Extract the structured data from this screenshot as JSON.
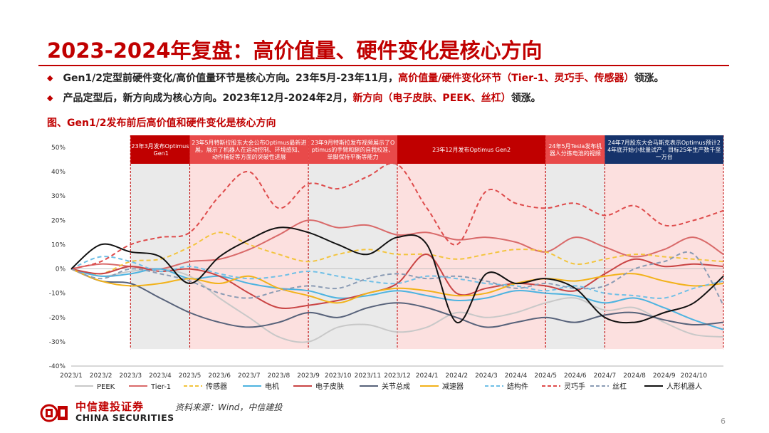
{
  "slide": {
    "title": "2023-2024年复盘：高价值量、硬件变化是核心方向",
    "bullets": [
      {
        "plain": "Gen1/2定型前硬件变化/高价值量环节是核心方向。23年5月-23年11月，",
        "highlight": "高价值量/硬件变化环节（Tier-1、灵巧手、传感器）",
        "tail": "领涨。"
      },
      {
        "plain": "产品定型后，新方向成为核心方向。2023年12月-2024年2月，",
        "highlight": "新方向（电子皮肤、PEEK、丝杠）",
        "tail": "领涨。"
      }
    ],
    "figure_caption": "图、Gen1/2发布前后高价值和硬件变化是核心方向",
    "source": "资料来源：Wind，中信建投",
    "brand_cn": "中信建投证券",
    "brand_en": "CHINA SECURITIES",
    "page_number": "6",
    "accent_color": "#c00000"
  },
  "chart_data": {
    "type": "line",
    "title": "Gen1/2发布前后高价值和硬件变化是核心方向",
    "x_labels": [
      "2023/1",
      "2023/2",
      "2023/3",
      "2023/4",
      "2023/5",
      "2023/6",
      "2023/7",
      "2023/8",
      "2023/9",
      "2023/10",
      "2023/11",
      "2023/12",
      "2024/1",
      "2024/2",
      "2024/3",
      "2024/4",
      "2024/5",
      "2024/6",
      "2024/7",
      "2024/8",
      "2024/9",
      "2024/10"
    ],
    "ylim": [
      -40,
      50
    ],
    "y_ticks": [
      50,
      40,
      30,
      20,
      10,
      0,
      -10,
      -20,
      -30,
      -40
    ],
    "y_tick_labels": [
      "50%",
      "40%",
      "30%",
      "20%",
      "10%",
      "0%",
      "-10%",
      "-20%",
      "-30%",
      "-40%"
    ],
    "y_unit": "%",
    "x_max": 22,
    "events": [
      {
        "label": "23年3月发布Optimus Gen1",
        "start": 2.0,
        "end": 4.0,
        "color": "#c00000",
        "fill": "#e3e3e3"
      },
      {
        "label": "23年5月特斯拉股东大会公布Optimus最新进展，展示了机器人在运动控制、环境感知、动作捕捉等方面的突破性进展",
        "start": 4.0,
        "end": 8.0,
        "color": "#e84a4a",
        "fill": "#fbd6d4"
      },
      {
        "label": "23年9月特斯拉发布视频展示了Optimus的手臂和腿的自我校准、单脚保持平衡等能力",
        "start": 8.0,
        "end": 11.0,
        "color": "#e84a4a",
        "fill": "#e3e3e3"
      },
      {
        "label": "23年12月发布Optimus Gen2",
        "start": 11.0,
        "end": 16.0,
        "color": "#c00000",
        "fill": "#fbd6d4"
      },
      {
        "label": "24年5月Tesla发布机器人分拣电池的视频",
        "start": 16.0,
        "end": 18.0,
        "color": "#e84a4a",
        "fill": "#e3e3e3"
      },
      {
        "label": "24年7月股东大会马斯克表示Optimus预计24年底开始小批量试产，目标25年生产数千至一万台",
        "start": 18.0,
        "end": 22.0,
        "color": "#16336b",
        "fill": "#fbd6d4"
      }
    ],
    "series": [
      {
        "name": "PEEK",
        "color": "#c8c8c8",
        "dash": "solid",
        "points": [
          [
            0,
            0
          ],
          [
            1,
            -3
          ],
          [
            2,
            -1
          ],
          [
            3,
            0
          ],
          [
            4,
            -3
          ],
          [
            5,
            -12
          ],
          [
            6,
            -20
          ],
          [
            7,
            -28
          ],
          [
            8,
            -30
          ],
          [
            9,
            -24
          ],
          [
            10,
            -23
          ],
          [
            11,
            -26
          ],
          [
            12,
            -24
          ],
          [
            13,
            -18
          ],
          [
            14,
            -20
          ],
          [
            15,
            -18
          ],
          [
            16,
            -14
          ],
          [
            17,
            -12
          ],
          [
            18,
            -17
          ],
          [
            19,
            -16
          ],
          [
            20,
            -22
          ],
          [
            21,
            -27
          ],
          [
            22,
            -28
          ]
        ]
      },
      {
        "name": "Tier-1",
        "color": "#d96a6a",
        "dash": "solid",
        "points": [
          [
            0,
            0
          ],
          [
            1,
            2
          ],
          [
            2,
            1
          ],
          [
            3,
            0
          ],
          [
            4,
            3
          ],
          [
            5,
            4
          ],
          [
            6,
            8
          ],
          [
            7,
            14
          ],
          [
            8,
            20
          ],
          [
            9,
            17
          ],
          [
            10,
            18
          ],
          [
            11,
            14
          ],
          [
            12,
            15
          ],
          [
            13,
            12
          ],
          [
            14,
            13
          ],
          [
            15,
            11
          ],
          [
            16,
            7
          ],
          [
            17,
            13
          ],
          [
            18,
            9
          ],
          [
            19,
            5
          ],
          [
            20,
            8
          ],
          [
            21,
            13
          ],
          [
            22,
            6
          ]
        ]
      },
      {
        "name": "传感器",
        "color": "#f3c43d",
        "dash": "dash",
        "points": [
          [
            0,
            0
          ],
          [
            1,
            -2
          ],
          [
            2,
            3
          ],
          [
            3,
            4
          ],
          [
            4,
            9
          ],
          [
            5,
            15
          ],
          [
            6,
            10
          ],
          [
            7,
            6
          ],
          [
            8,
            3
          ],
          [
            9,
            6
          ],
          [
            10,
            8
          ],
          [
            11,
            6
          ],
          [
            12,
            6
          ],
          [
            13,
            4
          ],
          [
            14,
            6
          ],
          [
            15,
            8
          ],
          [
            16,
            7
          ],
          [
            17,
            2
          ],
          [
            18,
            4
          ],
          [
            19,
            6
          ],
          [
            20,
            5
          ],
          [
            21,
            4
          ],
          [
            22,
            3
          ]
        ]
      },
      {
        "name": "电机",
        "color": "#4db3e0",
        "dash": "solid",
        "points": [
          [
            0,
            0
          ],
          [
            1,
            -3
          ],
          [
            2,
            -2
          ],
          [
            3,
            0
          ],
          [
            4,
            -4
          ],
          [
            5,
            -3
          ],
          [
            6,
            -6
          ],
          [
            7,
            -8
          ],
          [
            8,
            -9
          ],
          [
            9,
            -12
          ],
          [
            10,
            -11
          ],
          [
            11,
            -9
          ],
          [
            12,
            -11
          ],
          [
            13,
            -13
          ],
          [
            14,
            -12
          ],
          [
            15,
            -9
          ],
          [
            16,
            -10
          ],
          [
            17,
            -11
          ],
          [
            18,
            -14
          ],
          [
            19,
            -12
          ],
          [
            20,
            -16
          ],
          [
            21,
            -21
          ],
          [
            22,
            -25
          ]
        ]
      },
      {
        "name": "电子皮肤",
        "color": "#c94444",
        "dash": "solid",
        "points": [
          [
            0,
            0
          ],
          [
            1,
            -2
          ],
          [
            2,
            1
          ],
          [
            3,
            -1
          ],
          [
            4,
            0
          ],
          [
            5,
            -3
          ],
          [
            6,
            -10
          ],
          [
            7,
            -16
          ],
          [
            8,
            -15
          ],
          [
            9,
            -13
          ],
          [
            10,
            -10
          ],
          [
            11,
            -6
          ],
          [
            12,
            6
          ],
          [
            13,
            -10
          ],
          [
            14,
            -8
          ],
          [
            15,
            -6
          ],
          [
            16,
            -7
          ],
          [
            17,
            -9
          ],
          [
            18,
            -2
          ],
          [
            19,
            4
          ],
          [
            20,
            1
          ],
          [
            21,
            2
          ],
          [
            22,
            1
          ]
        ]
      },
      {
        "name": "关节总成",
        "color": "#57627a",
        "dash": "solid",
        "points": [
          [
            0,
            0
          ],
          [
            1,
            -5
          ],
          [
            2,
            -6
          ],
          [
            3,
            -12
          ],
          [
            4,
            -18
          ],
          [
            5,
            -22
          ],
          [
            6,
            -24
          ],
          [
            7,
            -22
          ],
          [
            8,
            -18
          ],
          [
            9,
            -20
          ],
          [
            10,
            -16
          ],
          [
            11,
            -14
          ],
          [
            12,
            -16
          ],
          [
            13,
            -20
          ],
          [
            14,
            -24
          ],
          [
            15,
            -22
          ],
          [
            16,
            -20
          ],
          [
            17,
            -22
          ],
          [
            18,
            -19
          ],
          [
            19,
            -18
          ],
          [
            20,
            -21
          ],
          [
            21,
            -23
          ],
          [
            22,
            -22
          ]
        ]
      },
      {
        "name": "减速器",
        "color": "#f2b21a",
        "dash": "solid",
        "points": [
          [
            0,
            0
          ],
          [
            1,
            -5
          ],
          [
            2,
            -7
          ],
          [
            3,
            -6
          ],
          [
            4,
            -4
          ],
          [
            5,
            -6
          ],
          [
            6,
            -3
          ],
          [
            7,
            -8
          ],
          [
            8,
            -11
          ],
          [
            9,
            -14
          ],
          [
            10,
            -10
          ],
          [
            11,
            -8
          ],
          [
            12,
            -9
          ],
          [
            13,
            -11
          ],
          [
            14,
            -10
          ],
          [
            15,
            -6
          ],
          [
            16,
            -4
          ],
          [
            17,
            -5
          ],
          [
            18,
            -3
          ],
          [
            19,
            -2
          ],
          [
            20,
            -5
          ],
          [
            21,
            -7
          ],
          [
            22,
            -6
          ]
        ]
      },
      {
        "name": "结构件",
        "color": "#6fbfe6",
        "dash": "dash",
        "points": [
          [
            0,
            0
          ],
          [
            1,
            5
          ],
          [
            2,
            3
          ],
          [
            3,
            -1
          ],
          [
            4,
            1
          ],
          [
            5,
            -2
          ],
          [
            6,
            -4
          ],
          [
            7,
            -3
          ],
          [
            8,
            -1
          ],
          [
            9,
            -3
          ],
          [
            10,
            -5
          ],
          [
            11,
            -6
          ],
          [
            12,
            -3
          ],
          [
            13,
            -4
          ],
          [
            14,
            -6
          ],
          [
            15,
            -7
          ],
          [
            16,
            -9
          ],
          [
            17,
            -7
          ],
          [
            18,
            -10
          ],
          [
            19,
            -11
          ],
          [
            20,
            -12
          ],
          [
            21,
            -8
          ],
          [
            22,
            -5
          ]
        ]
      },
      {
        "name": "灵巧手",
        "color": "#de4b4b",
        "dash": "dash",
        "points": [
          [
            0,
            0
          ],
          [
            1,
            3
          ],
          [
            2,
            10
          ],
          [
            3,
            13
          ],
          [
            4,
            15
          ],
          [
            5,
            30
          ],
          [
            6,
            40
          ],
          [
            7,
            25
          ],
          [
            8,
            35
          ],
          [
            9,
            33
          ],
          [
            10,
            38
          ],
          [
            11,
            43
          ],
          [
            12,
            25
          ],
          [
            13,
            10
          ],
          [
            14,
            32
          ],
          [
            15,
            27
          ],
          [
            16,
            25
          ],
          [
            17,
            27
          ],
          [
            18,
            22
          ],
          [
            19,
            26
          ],
          [
            20,
            18
          ],
          [
            21,
            20
          ],
          [
            22,
            24
          ]
        ]
      },
      {
        "name": "丝杠",
        "color": "#8a9bb4",
        "dash": "dash",
        "points": [
          [
            0,
            0
          ],
          [
            1,
            -4
          ],
          [
            2,
            0
          ],
          [
            3,
            -2
          ],
          [
            4,
            -5
          ],
          [
            5,
            -10
          ],
          [
            6,
            -12
          ],
          [
            7,
            -9
          ],
          [
            8,
            -7
          ],
          [
            9,
            -8
          ],
          [
            10,
            -4
          ],
          [
            11,
            -2
          ],
          [
            12,
            -4
          ],
          [
            13,
            -3
          ],
          [
            14,
            -5
          ],
          [
            15,
            -8
          ],
          [
            16,
            -6
          ],
          [
            17,
            -8
          ],
          [
            18,
            -7
          ],
          [
            19,
            0
          ],
          [
            20,
            3
          ],
          [
            21,
            6
          ],
          [
            22,
            -15
          ]
        ]
      },
      {
        "name": "人形机器人",
        "color": "#111111",
        "dash": "solid",
        "points": [
          [
            0,
            0
          ],
          [
            1,
            10
          ],
          [
            2,
            7
          ],
          [
            3,
            5
          ],
          [
            4,
            -6
          ],
          [
            5,
            5
          ],
          [
            6,
            12
          ],
          [
            7,
            17
          ],
          [
            8,
            15
          ],
          [
            9,
            10
          ],
          [
            10,
            6
          ],
          [
            11,
            13
          ],
          [
            12,
            10
          ],
          [
            13,
            -22
          ],
          [
            14,
            -2
          ],
          [
            15,
            -6
          ],
          [
            16,
            -4
          ],
          [
            17,
            -8
          ],
          [
            18,
            -20
          ],
          [
            19,
            -22
          ],
          [
            20,
            -18
          ],
          [
            21,
            -14
          ],
          [
            22,
            -3
          ]
        ]
      }
    ]
  }
}
